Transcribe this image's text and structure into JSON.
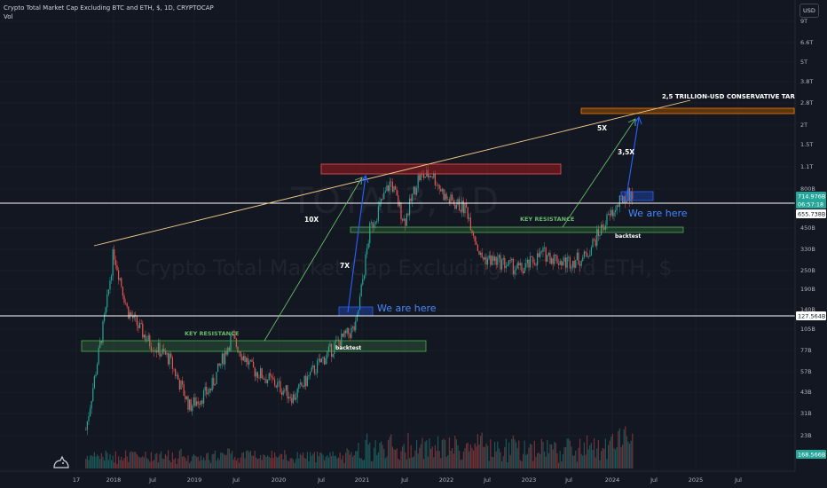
{
  "header": {
    "title": "Crypto Total Market Cap Excluding BTC and ETH, $, 1D, CRYPTOCAP",
    "volume_label": "Vol",
    "currency_button": "USD"
  },
  "watermark": {
    "symbol": "TOTAL3, 1D",
    "description": "Crypto Total Market Cap Excluding BTC and ETH, $"
  },
  "price_axis": {
    "ticks": [
      "9T",
      "6.6T",
      "5T",
      "3.8T",
      "2.8T",
      "2T",
      "1.5T",
      "1.1T",
      "800B",
      "450B",
      "330B",
      "250B",
      "190B",
      "140B",
      "105B",
      "77B",
      "57B",
      "43B",
      "31B",
      "23B"
    ],
    "tags": [
      {
        "label": "714.976B",
        "color": "#26a69a"
      },
      {
        "label": "06:57:18",
        "color": "#26a69a"
      },
      {
        "label": "655.738B",
        "color": "#ffffff"
      },
      {
        "label": "127.564B",
        "color": "#ffffff"
      },
      {
        "label": "168.566B",
        "color": "#26a69a"
      }
    ]
  },
  "time_axis": {
    "ticks": [
      "17",
      "2018",
      "Jul",
      "2019",
      "Jul",
      "2020",
      "Jul",
      "2021",
      "Jul",
      "2022",
      "Jul",
      "2023",
      "Jul",
      "2024",
      "Jul",
      "2025",
      "Jul"
    ]
  },
  "annotations": {
    "target": "2,5 TRILLION-USD CONSERVATIVE TARGET",
    "mult_10x": "10X",
    "mult_7x": "7X",
    "mult_5x": "5X",
    "mult_35x": "3,5X",
    "key_resistance_1": "KEY RESISTANCE",
    "key_resistance_2": "KEY RESISTANCE",
    "we_are_here_1": "We are here",
    "we_are_here_2": "We are here",
    "backtest_1": "backtest",
    "backtest_2": "backtest"
  },
  "colors": {
    "background": "#131722",
    "up": "#26a69a",
    "down": "#ef5350",
    "resistance_zone": "#4caf50",
    "target_zone": "#f57c00",
    "top_zone": "#b71c1c",
    "arrow_blue": "#2962ff",
    "arrow_green": "#66bb6a",
    "trendline": "#f0c987"
  },
  "chart_data": {
    "type": "line",
    "title": "Crypto Total Market Cap Excluding BTC and ETH, $, 1D, CRYPTOCAP",
    "y_scale": "log",
    "ylabel": "",
    "xlabel": "",
    "series": [
      {
        "x": [
          "2017-09",
          "2017-12",
          "2018-01",
          "2018-03",
          "2018-06",
          "2018-09",
          "2018-12",
          "2019-03",
          "2019-06",
          "2019-09",
          "2019-12",
          "2020-03",
          "2020-06",
          "2020-09",
          "2020-12",
          "2021-02",
          "2021-05",
          "2021-07",
          "2021-09",
          "2021-11",
          "2022-01",
          "2022-04",
          "2022-06",
          "2022-09",
          "2022-12",
          "2023-03",
          "2023-06",
          "2023-09",
          "2023-12",
          "2024-03",
          "2024-04"
        ],
        "values": [
          25,
          150,
          330,
          140,
          90,
          70,
          35,
          45,
          95,
          60,
          50,
          40,
          60,
          85,
          110,
          450,
          900,
          500,
          950,
          1000,
          700,
          600,
          300,
          280,
          250,
          320,
          280,
          300,
          500,
          750,
          715
        ]
      }
    ],
    "levels": {
      "last_price": "714.976B",
      "prior_level": "655.738B",
      "level_2021": "127.564B",
      "volume_last": "168.566B"
    }
  }
}
